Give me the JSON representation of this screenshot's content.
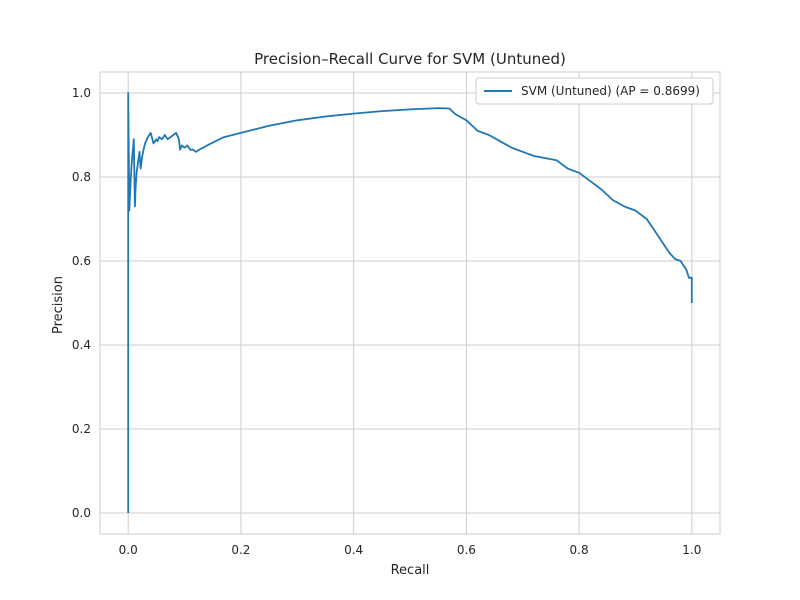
{
  "chart_data": {
    "type": "line",
    "title": "Precision–Recall Curve for SVM (Untuned)",
    "xlabel": "Recall",
    "ylabel": "Precision",
    "xlim": [
      -0.05,
      1.05
    ],
    "ylim": [
      -0.05,
      1.05
    ],
    "xticks": [
      "0.0",
      "0.2",
      "0.4",
      "0.6",
      "0.8",
      "1.0"
    ],
    "yticks": [
      "0.0",
      "0.2",
      "0.4",
      "0.6",
      "0.8",
      "1.0"
    ],
    "grid": true,
    "legend_position": "top-right",
    "series": [
      {
        "name": "SVM (Untuned) (AP = 0.8699)",
        "color": "#1f77b4",
        "x": [
          0.0,
          0.0,
          0.002,
          0.004,
          0.006,
          0.008,
          0.01,
          0.012,
          0.013,
          0.015,
          0.018,
          0.02,
          0.022,
          0.025,
          0.028,
          0.03,
          0.035,
          0.04,
          0.045,
          0.05,
          0.052,
          0.055,
          0.06,
          0.065,
          0.07,
          0.075,
          0.08,
          0.085,
          0.09,
          0.092,
          0.095,
          0.1,
          0.105,
          0.11,
          0.115,
          0.12,
          0.13,
          0.15,
          0.17,
          0.185,
          0.2,
          0.25,
          0.3,
          0.35,
          0.4,
          0.45,
          0.5,
          0.55,
          0.57,
          0.58,
          0.6,
          0.62,
          0.64,
          0.66,
          0.68,
          0.7,
          0.72,
          0.74,
          0.76,
          0.78,
          0.8,
          0.82,
          0.84,
          0.86,
          0.88,
          0.9,
          0.91,
          0.92,
          0.93,
          0.94,
          0.95,
          0.96,
          0.97,
          0.98,
          0.99,
          0.995,
          1.0,
          1.0
        ],
        "y": [
          0.0,
          1.0,
          0.72,
          0.78,
          0.83,
          0.86,
          0.89,
          0.73,
          0.77,
          0.81,
          0.84,
          0.86,
          0.82,
          0.85,
          0.87,
          0.88,
          0.895,
          0.905,
          0.88,
          0.89,
          0.885,
          0.895,
          0.89,
          0.9,
          0.89,
          0.895,
          0.9,
          0.905,
          0.89,
          0.865,
          0.875,
          0.87,
          0.875,
          0.865,
          0.865,
          0.86,
          0.868,
          0.882,
          0.895,
          0.9,
          0.905,
          0.922,
          0.935,
          0.944,
          0.951,
          0.957,
          0.961,
          0.964,
          0.963,
          0.95,
          0.935,
          0.91,
          0.9,
          0.885,
          0.87,
          0.86,
          0.85,
          0.845,
          0.84,
          0.82,
          0.81,
          0.79,
          0.77,
          0.745,
          0.73,
          0.72,
          0.71,
          0.7,
          0.68,
          0.66,
          0.64,
          0.62,
          0.605,
          0.6,
          0.58,
          0.56,
          0.56,
          0.5
        ]
      }
    ]
  }
}
